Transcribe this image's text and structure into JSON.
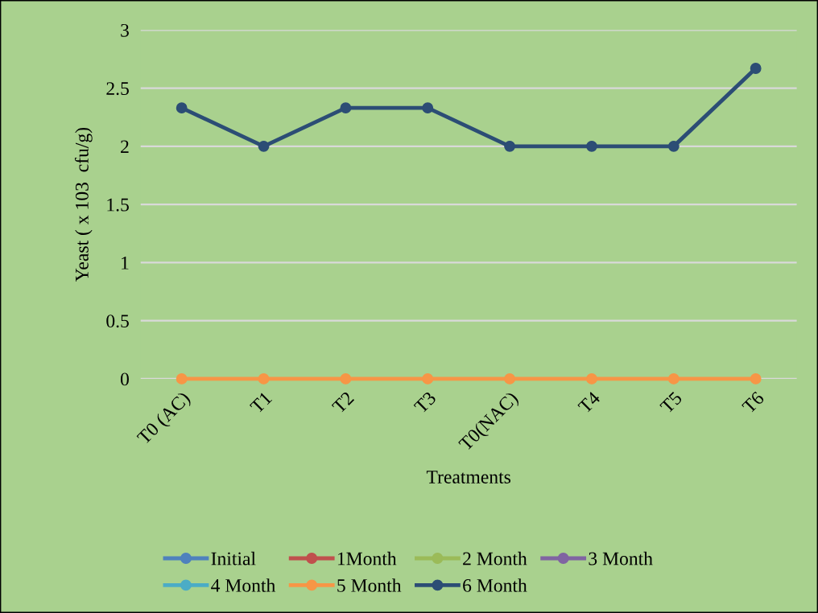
{
  "chart_data": {
    "type": "line",
    "xlabel": "Treatments",
    "ylabel": "Yeast ( x 103  cfu/g)",
    "categories": [
      "T0 (AC)",
      "T1",
      "T2",
      "T3",
      "T0(NAC)",
      "T4",
      "T5",
      "T6"
    ],
    "series": [
      {
        "name": "Initial",
        "color": "#4f81bd",
        "values": [
          null,
          null,
          null,
          null,
          null,
          null,
          null,
          null
        ]
      },
      {
        "name": "1Month",
        "color": "#c0504d",
        "values": [
          null,
          null,
          null,
          null,
          null,
          null,
          null,
          null
        ]
      },
      {
        "name": "2 Month",
        "color": "#9bbb59",
        "values": [
          null,
          null,
          null,
          null,
          null,
          null,
          null,
          null
        ]
      },
      {
        "name": "3 Month",
        "color": "#8064a2",
        "values": [
          null,
          null,
          null,
          null,
          null,
          null,
          null,
          null
        ]
      },
      {
        "name": "4 Month",
        "color": "#4bacc6",
        "values": [
          null,
          null,
          null,
          null,
          null,
          null,
          null,
          null
        ]
      },
      {
        "name": "5 Month",
        "color": "#f79646",
        "values": [
          0,
          0,
          0,
          0,
          0,
          0,
          0,
          0
        ]
      },
      {
        "name": "6 Month",
        "color": "#2c4d75",
        "values": [
          2.33,
          2,
          2.33,
          2.33,
          2,
          2,
          2,
          2.67
        ]
      }
    ],
    "ylim": [
      0,
      3
    ],
    "yticks": [
      0,
      0.5,
      1,
      1.5,
      2,
      2.5,
      3
    ],
    "grid": "y",
    "legend": "bottom",
    "marker": "circle",
    "line_style": "solid"
  }
}
